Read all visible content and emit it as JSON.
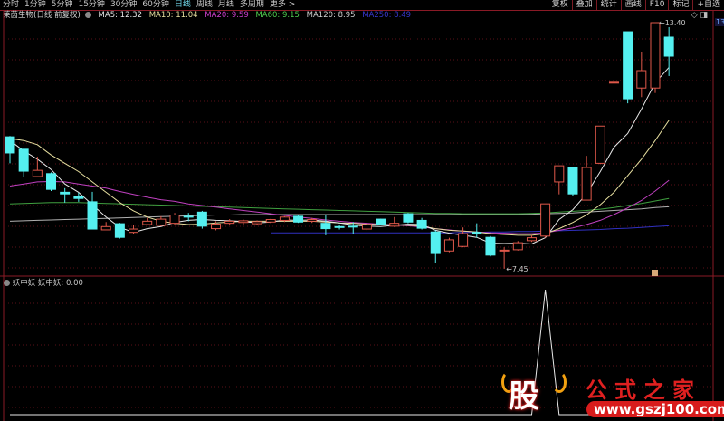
{
  "toolbar": {
    "periods": [
      "分时",
      "1分钟",
      "5分钟",
      "15分钟",
      "30分钟",
      "60分钟",
      "日线",
      "周线",
      "月线",
      "多周期",
      "更多 >"
    ],
    "active_period": "日线",
    "buttons": [
      "复权",
      "叠加",
      "统计",
      "画线",
      "F10",
      "标记",
      "+自选"
    ]
  },
  "info": {
    "title": "莱茵生物(日线 前复权)",
    "ma5": "MA5: 12.32",
    "ma10": "MA10: 11.04",
    "ma20": "MA20: 9.59",
    "ma60": "MA60: 9.15",
    "ma120": "MA120: 8.95",
    "ma250": "MA250: 8.49"
  },
  "axis_tag": "13",
  "corner_icons": [
    "diamond-icon",
    "panel-icon"
  ],
  "indicator": {
    "name": "妖中妖",
    "value_label": "妖中妖: 0.00"
  },
  "watermark": {
    "char": "股",
    "name": "公式之家",
    "url": "www.gszj100.com"
  },
  "colors": {
    "up": "#e0584a",
    "down": "#54f0f0",
    "ma5": "#e8e8e8",
    "ma10": "#e8e0a0",
    "ma20": "#c040c0",
    "ma60": "#40a040",
    "ma120": "#b0b0b0",
    "ma250": "#3030c0",
    "grid": "#5a1018"
  },
  "chart_data": {
    "type": "candlestick",
    "high_label": "13.40",
    "low_label": "7.45",
    "candles": [
      [
        10.64,
        10.66,
        10.0,
        10.25
      ],
      [
        10.34,
        10.34,
        9.68,
        9.81
      ],
      [
        9.68,
        10.16,
        9.68,
        9.83
      ],
      [
        9.75,
        9.78,
        9.33,
        9.37
      ],
      [
        9.3,
        9.4,
        9.05,
        9.26
      ],
      [
        9.2,
        9.29,
        9.07,
        9.15
      ],
      [
        9.07,
        9.31,
        8.41,
        8.41
      ],
      [
        8.39,
        8.58,
        8.39,
        8.47
      ],
      [
        8.54,
        8.56,
        8.18,
        8.21
      ],
      [
        8.33,
        8.5,
        8.3,
        8.41
      ],
      [
        8.52,
        8.68,
        8.5,
        8.6
      ],
      [
        8.5,
        8.72,
        8.48,
        8.65
      ],
      [
        8.55,
        8.8,
        8.5,
        8.75
      ],
      [
        8.72,
        8.8,
        8.6,
        8.7
      ],
      [
        8.82,
        8.85,
        8.42,
        8.48
      ],
      [
        8.42,
        8.6,
        8.38,
        8.53
      ],
      [
        8.55,
        8.65,
        8.5,
        8.6
      ],
      [
        8.57,
        8.64,
        8.52,
        8.61
      ],
      [
        8.54,
        8.62,
        8.5,
        8.59
      ],
      [
        8.58,
        8.66,
        8.55,
        8.64
      ],
      [
        8.62,
        8.72,
        8.58,
        8.7
      ],
      [
        8.72,
        8.74,
        8.56,
        8.58
      ],
      [
        8.6,
        8.68,
        8.56,
        8.64
      ],
      [
        8.55,
        8.75,
        8.26,
        8.42
      ],
      [
        8.47,
        8.52,
        8.4,
        8.45
      ],
      [
        8.48,
        8.58,
        8.3,
        8.46
      ],
      [
        8.41,
        8.56,
        8.38,
        8.52
      ],
      [
        8.65,
        8.66,
        8.5,
        8.52
      ],
      [
        8.48,
        8.7,
        8.46,
        8.55
      ],
      [
        8.78,
        8.8,
        8.55,
        8.58
      ],
      [
        8.62,
        8.68,
        8.4,
        8.43
      ],
      [
        8.34,
        8.38,
        7.58,
        7.84
      ],
      [
        7.88,
        8.2,
        7.85,
        8.15
      ],
      [
        7.99,
        8.45,
        7.97,
        8.3
      ],
      [
        8.33,
        8.55,
        8.2,
        8.29
      ],
      [
        8.21,
        8.24,
        7.75,
        7.78
      ],
      [
        7.88,
        7.97,
        7.45,
        7.9
      ],
      [
        7.91,
        8.12,
        7.89,
        8.08
      ],
      [
        8.13,
        8.26,
        8.1,
        8.2
      ],
      [
        8.24,
        9.02,
        8.2,
        9.02
      ],
      [
        9.55,
        9.94,
        9.25,
        9.94
      ],
      [
        9.9,
        9.92,
        9.22,
        9.26
      ],
      [
        9.11,
        10.18,
        9.1,
        9.9
      ],
      [
        10.0,
        10.9,
        9.98,
        10.9
      ],
      [
        11.96,
        11.96,
        11.96,
        11.96
      ],
      [
        13.18,
        13.18,
        11.45,
        11.56
      ],
      [
        11.82,
        12.7,
        11.6,
        12.24
      ],
      [
        11.82,
        13.4,
        11.7,
        13.4
      ],
      [
        13.05,
        13.29,
        12.11,
        12.59
      ]
    ],
    "ma_series": {
      "ma5": [
        10.55,
        10.3,
        10.1,
        9.85,
        9.5,
        9.3,
        9.0,
        8.7,
        8.45,
        8.33,
        8.42,
        8.47,
        8.57,
        8.62,
        8.64,
        8.62,
        8.61,
        8.59,
        8.56,
        8.58,
        8.63,
        8.62,
        8.63,
        8.6,
        8.56,
        8.51,
        8.48,
        8.47,
        8.5,
        8.53,
        8.52,
        8.38,
        8.31,
        8.26,
        8.21,
        8.07,
        8.06,
        8.07,
        8.05,
        8.2,
        8.64,
        8.88,
        9.26,
        9.8,
        10.39,
        10.72,
        11.31,
        11.95,
        12.32
      ],
      "ma10": [
        10.6,
        10.55,
        10.45,
        10.2,
        10.0,
        9.8,
        9.55,
        9.3,
        9.05,
        8.85,
        8.7,
        8.6,
        8.55,
        8.52,
        8.53,
        8.56,
        8.58,
        8.6,
        8.6,
        8.6,
        8.6,
        8.6,
        8.6,
        8.58,
        8.56,
        8.55,
        8.53,
        8.52,
        8.51,
        8.5,
        8.48,
        8.42,
        8.38,
        8.36,
        8.34,
        8.3,
        8.28,
        8.26,
        8.26,
        8.3,
        8.42,
        8.57,
        8.75,
        9.0,
        9.3,
        9.7,
        10.1,
        10.55,
        11.04
      ],
      "ma20": [
        9.45,
        9.5,
        9.55,
        9.56,
        9.55,
        9.5,
        9.45,
        9.4,
        9.32,
        9.25,
        9.18,
        9.12,
        9.08,
        9.02,
        8.98,
        8.94,
        8.9,
        8.86,
        8.82,
        8.78,
        8.74,
        8.7,
        8.67,
        8.63,
        8.6,
        8.57,
        8.55,
        8.53,
        8.51,
        8.49,
        8.46,
        8.42,
        8.39,
        8.36,
        8.34,
        8.32,
        8.31,
        8.3,
        8.3,
        8.32,
        8.38,
        8.44,
        8.52,
        8.62,
        8.76,
        8.92,
        9.1,
        9.33,
        9.59
      ],
      "ma60": [
        9.02,
        9.03,
        9.04,
        9.05,
        9.05,
        9.05,
        9.04,
        9.03,
        9.02,
        9.01,
        9.0,
        8.99,
        8.98,
        8.97,
        8.96,
        8.95,
        8.94,
        8.93,
        8.92,
        8.91,
        8.9,
        8.89,
        8.88,
        8.87,
        8.86,
        8.85,
        8.84,
        8.83,
        8.82,
        8.81,
        8.8,
        8.79,
        8.79,
        8.78,
        8.78,
        8.78,
        8.78,
        8.78,
        8.79,
        8.8,
        8.82,
        8.84,
        8.86,
        8.89,
        8.93,
        8.98,
        9.03,
        9.09,
        9.15
      ],
      "ma120": [
        8.6,
        8.61,
        8.62,
        8.63,
        8.64,
        8.65,
        8.66,
        8.67,
        8.68,
        8.69,
        8.7,
        8.71,
        8.72,
        8.73,
        8.74,
        8.75,
        8.75,
        8.76,
        8.76,
        8.76,
        8.76,
        8.76,
        8.76,
        8.76,
        8.76,
        8.76,
        8.76,
        8.76,
        8.76,
        8.76,
        8.76,
        8.76,
        8.76,
        8.76,
        8.76,
        8.76,
        8.76,
        8.76,
        8.77,
        8.78,
        8.79,
        8.8,
        8.82,
        8.84,
        8.86,
        8.88,
        8.9,
        8.93,
        8.95
      ],
      "ma250": [
        null,
        null,
        null,
        null,
        null,
        null,
        null,
        null,
        null,
        null,
        null,
        null,
        null,
        null,
        null,
        null,
        null,
        null,
        null,
        8.32,
        8.32,
        8.32,
        8.32,
        8.32,
        8.32,
        8.32,
        8.32,
        8.32,
        8.32,
        8.32,
        8.32,
        8.32,
        8.32,
        8.33,
        8.33,
        8.34,
        8.34,
        8.35,
        8.35,
        8.36,
        8.37,
        8.38,
        8.39,
        8.4,
        8.42,
        8.43,
        8.45,
        8.47,
        8.49
      ]
    },
    "indicator_values": [
      0,
      0,
      0,
      0,
      0,
      0,
      0,
      0,
      0,
      0,
      0,
      0,
      0,
      0,
      0,
      0,
      0,
      0,
      0,
      0,
      0,
      0,
      0,
      0,
      0,
      0,
      0,
      0,
      0,
      0,
      0,
      0,
      0,
      0,
      0,
      0,
      0,
      0,
      0,
      1,
      0,
      0,
      0,
      0,
      0,
      0,
      0,
      0,
      0
    ],
    "grid": true
  }
}
